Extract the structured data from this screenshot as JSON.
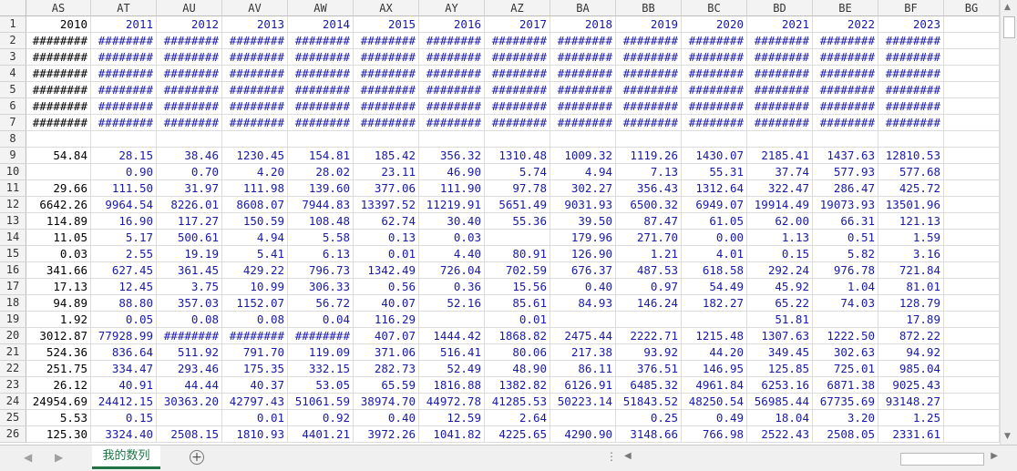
{
  "columns": [
    "AS",
    "AT",
    "AU",
    "AV",
    "AW",
    "AX",
    "AY",
    "AZ",
    "BA",
    "BB",
    "BC",
    "BD",
    "BE",
    "BF",
    "BG"
  ],
  "row_numbers": [
    "1",
    "2",
    "3",
    "4",
    "5",
    "6",
    "7",
    "8",
    "9",
    "10",
    "11",
    "12",
    "13",
    "14",
    "15",
    "16",
    "17",
    "18",
    "19",
    "20",
    "21",
    "22",
    "23",
    "24",
    "25",
    "26"
  ],
  "rows": [
    [
      "2010",
      "2011",
      "2012",
      "2013",
      "2014",
      "2015",
      "2016",
      "2017",
      "2018",
      "2019",
      "2020",
      "2021",
      "2022",
      "2023",
      ""
    ],
    [
      "########",
      "########",
      "########",
      "########",
      "########",
      "########",
      "########",
      "########",
      "########",
      "########",
      "########",
      "########",
      "########",
      "########",
      ""
    ],
    [
      "########",
      "########",
      "########",
      "########",
      "########",
      "########",
      "########",
      "########",
      "########",
      "########",
      "########",
      "########",
      "########",
      "########",
      ""
    ],
    [
      "########",
      "########",
      "########",
      "########",
      "########",
      "########",
      "########",
      "########",
      "########",
      "########",
      "########",
      "########",
      "########",
      "########",
      ""
    ],
    [
      "########",
      "########",
      "########",
      "########",
      "########",
      "########",
      "########",
      "########",
      "########",
      "########",
      "########",
      "########",
      "########",
      "########",
      ""
    ],
    [
      "########",
      "########",
      "########",
      "########",
      "########",
      "########",
      "########",
      "########",
      "########",
      "########",
      "########",
      "########",
      "########",
      "########",
      ""
    ],
    [
      "########",
      "########",
      "########",
      "########",
      "########",
      "########",
      "########",
      "########",
      "########",
      "########",
      "########",
      "########",
      "########",
      "########",
      ""
    ],
    [
      "",
      "",
      "",
      "",
      "",
      "",
      "",
      "",
      "",
      "",
      "",
      "",
      "",
      "",
      ""
    ],
    [
      "54.84",
      "28.15",
      "38.46",
      "1230.45",
      "154.81",
      "185.42",
      "356.32",
      "1310.48",
      "1009.32",
      "1119.26",
      "1430.07",
      "2185.41",
      "1437.63",
      "12810.53",
      ""
    ],
    [
      "",
      "0.90",
      "0.70",
      "4.20",
      "28.02",
      "23.11",
      "46.90",
      "5.74",
      "4.94",
      "7.13",
      "55.31",
      "37.74",
      "577.93",
      "577.68",
      ""
    ],
    [
      "29.66",
      "111.50",
      "31.97",
      "111.98",
      "139.60",
      "377.06",
      "111.90",
      "97.78",
      "302.27",
      "356.43",
      "1312.64",
      "322.47",
      "286.47",
      "425.72",
      ""
    ],
    [
      "6642.26",
      "9964.54",
      "8226.01",
      "8608.07",
      "7944.83",
      "13397.52",
      "11219.91",
      "5651.49",
      "9031.93",
      "6500.32",
      "6949.07",
      "19914.49",
      "19073.93",
      "13501.96",
      ""
    ],
    [
      "114.89",
      "16.90",
      "117.27",
      "150.59",
      "108.48",
      "62.74",
      "30.40",
      "55.36",
      "39.50",
      "87.47",
      "61.05",
      "62.00",
      "66.31",
      "121.13",
      ""
    ],
    [
      "11.05",
      "5.17",
      "500.61",
      "4.94",
      "5.58",
      "0.13",
      "0.03",
      "",
      "179.96",
      "271.70",
      "0.00",
      "1.13",
      "0.51",
      "1.59",
      ""
    ],
    [
      "0.03",
      "2.55",
      "19.19",
      "5.41",
      "6.13",
      "0.01",
      "4.40",
      "80.91",
      "126.90",
      "1.21",
      "4.01",
      "0.15",
      "5.82",
      "3.16",
      ""
    ],
    [
      "341.66",
      "627.45",
      "361.45",
      "429.22",
      "796.73",
      "1342.49",
      "726.04",
      "702.59",
      "676.37",
      "487.53",
      "618.58",
      "292.24",
      "976.78",
      "721.84",
      ""
    ],
    [
      "17.13",
      "12.45",
      "3.75",
      "10.99",
      "306.33",
      "0.56",
      "0.36",
      "15.56",
      "0.40",
      "0.97",
      "54.49",
      "45.92",
      "1.04",
      "81.01",
      ""
    ],
    [
      "94.89",
      "88.80",
      "357.03",
      "1152.07",
      "56.72",
      "40.07",
      "52.16",
      "85.61",
      "84.93",
      "146.24",
      "182.27",
      "65.22",
      "74.03",
      "128.79",
      ""
    ],
    [
      "1.92",
      "0.05",
      "0.08",
      "0.08",
      "0.04",
      "116.29",
      "",
      "0.01",
      "",
      "",
      "",
      "51.81",
      "",
      "17.89",
      ""
    ],
    [
      "3012.87",
      "77928.99",
      "########",
      "########",
      "########",
      "407.07",
      "1444.42",
      "1868.82",
      "2475.44",
      "2222.71",
      "1215.48",
      "1307.63",
      "1222.50",
      "872.22",
      ""
    ],
    [
      "524.36",
      "836.64",
      "511.92",
      "791.70",
      "119.09",
      "371.06",
      "516.41",
      "80.06",
      "217.38",
      "93.92",
      "44.20",
      "349.45",
      "302.63",
      "94.92",
      ""
    ],
    [
      "251.75",
      "334.47",
      "293.46",
      "175.35",
      "332.15",
      "282.73",
      "52.49",
      "48.90",
      "86.11",
      "376.51",
      "146.95",
      "125.85",
      "725.01",
      "985.04",
      ""
    ],
    [
      "26.12",
      "40.91",
      "44.44",
      "40.37",
      "53.05",
      "65.59",
      "1816.88",
      "1382.82",
      "6126.91",
      "6485.32",
      "4961.84",
      "6253.16",
      "6871.38",
      "9025.43",
      ""
    ],
    [
      "24954.69",
      "24412.15",
      "30363.20",
      "42797.43",
      "51061.59",
      "38974.70",
      "44972.78",
      "41285.53",
      "50223.14",
      "51843.52",
      "48250.54",
      "56985.44",
      "67735.69",
      "93148.27",
      ""
    ],
    [
      "5.53",
      "0.15",
      "",
      "0.01",
      "0.92",
      "0.40",
      "12.59",
      "2.64",
      "",
      "0.25",
      "0.49",
      "18.04",
      "3.20",
      "1.25",
      ""
    ],
    [
      "125.30",
      "3324.40",
      "2508.15",
      "1810.93",
      "4401.21",
      "3972.26",
      "1041.82",
      "4225.65",
      "4290.90",
      "3148.66",
      "766.98",
      "2522.43",
      "2508.05",
      "2331.61",
      ""
    ]
  ],
  "blue_from_col": 1,
  "sheet_tab": "我的数列",
  "add_sheet": "+",
  "nav_prev": "◀",
  "nav_next": "▶",
  "tab_more": "⋮",
  "scroll_up": "▲",
  "scroll_down": "▼",
  "scroll_left": "◀",
  "scroll_right": "▶"
}
